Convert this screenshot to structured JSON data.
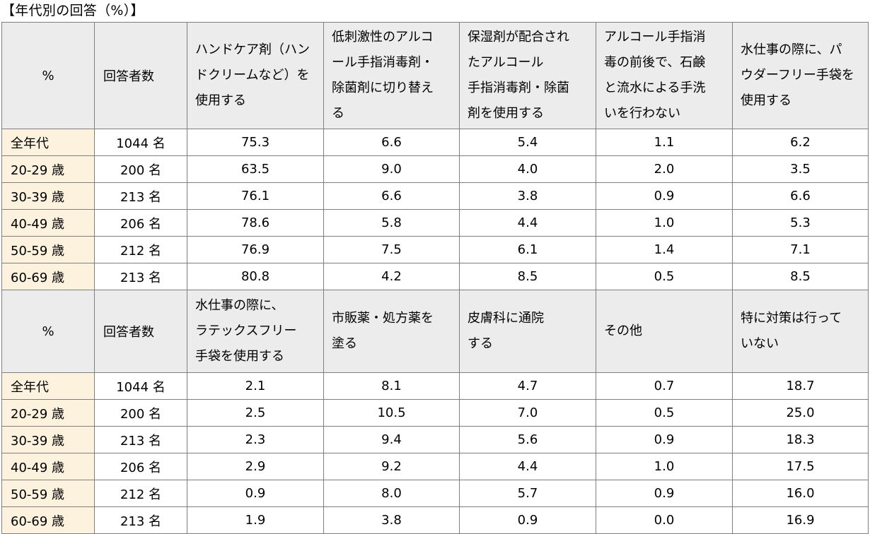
{
  "title": "【年代別の回答（%）】",
  "tables": [
    {
      "corner": "%",
      "respondents_header": "回答者数",
      "headers": [
        "ハンドケア剤（ハン\nドクリームなど）を\n使用する",
        "低刺激性のアルコ\nール手指消毒剤・\n除菌剤に切り替え\nる",
        "保湿剤が配合され\nたアルコール\n手指消毒剤・除菌\n剤を使用する",
        "アルコール手指消\n毒の前後で、石鹸\nと流水による手洗\nいを行わない",
        "水仕事の際に、パ\nウダーフリー手袋を\n使用する"
      ],
      "rows": [
        {
          "age": "全年代",
          "count": "1044 名",
          "values": [
            "75.3",
            "6.6",
            "5.4",
            "1.1",
            "6.2"
          ]
        },
        {
          "age": "20-29 歳",
          "count": "200 名",
          "values": [
            "63.5",
            "9.0",
            "4.0",
            "2.0",
            "3.5"
          ]
        },
        {
          "age": "30-39 歳",
          "count": "213 名",
          "values": [
            "76.1",
            "6.6",
            "3.8",
            "0.9",
            "6.6"
          ]
        },
        {
          "age": "40-49 歳",
          "count": "206 名",
          "values": [
            "78.6",
            "5.8",
            "4.4",
            "1.0",
            "5.3"
          ]
        },
        {
          "age": "50-59 歳",
          "count": "212 名",
          "values": [
            "76.9",
            "7.5",
            "6.1",
            "1.4",
            "7.1"
          ]
        },
        {
          "age": "60-69 歳",
          "count": "213 名",
          "values": [
            "80.8",
            "4.2",
            "8.5",
            "0.5",
            "8.5"
          ]
        }
      ]
    },
    {
      "corner": "%",
      "respondents_header": "回答者数",
      "headers": [
        "水仕事の際に、\nラテックスフリー\n手袋を使用する",
        "市販薬・処方薬を\n塗る",
        "皮膚科に通院\nする",
        "その他",
        "特に対策は行って\nいない"
      ],
      "rows": [
        {
          "age": "全年代",
          "count": "1044 名",
          "values": [
            "2.1",
            "8.1",
            "4.7",
            "0.7",
            "18.7"
          ]
        },
        {
          "age": "20-29 歳",
          "count": "200 名",
          "values": [
            "2.5",
            "10.5",
            "7.0",
            "0.5",
            "25.0"
          ]
        },
        {
          "age": "30-39 歳",
          "count": "213 名",
          "values": [
            "2.3",
            "9.4",
            "5.6",
            "0.9",
            "18.3"
          ]
        },
        {
          "age": "40-49 歳",
          "count": "206 名",
          "values": [
            "2.9",
            "9.2",
            "4.4",
            "1.0",
            "17.5"
          ]
        },
        {
          "age": "50-59 歳",
          "count": "212 名",
          "values": [
            "0.9",
            "8.0",
            "5.7",
            "0.9",
            "16.0"
          ]
        },
        {
          "age": "60-69 歳",
          "count": "213 名",
          "values": [
            "1.9",
            "3.8",
            "0.9",
            "0.0",
            "16.9"
          ]
        }
      ]
    }
  ],
  "colors": {
    "header_bg": "#ececec",
    "age_bg": "#fdf2de",
    "border": "#7f7f7f"
  }
}
